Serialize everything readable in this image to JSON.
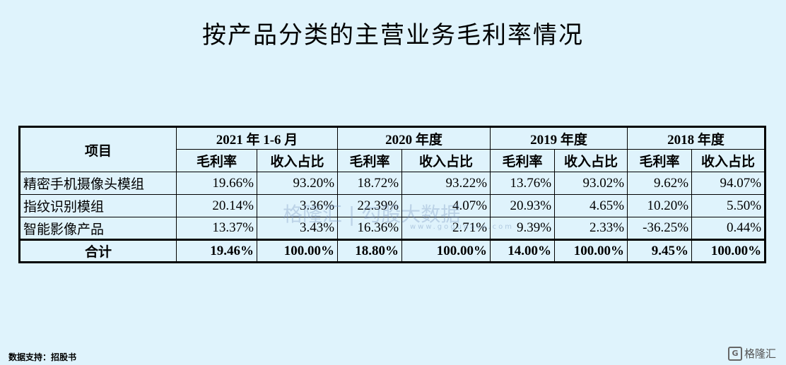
{
  "title": "按产品分类的主营业务毛利率情况",
  "table": {
    "item_header": "项目",
    "periods": [
      "2021 年 1-6 月",
      "2020 年度",
      "2019 年度",
      "2018 年度"
    ],
    "sub_headers": [
      "毛利率",
      "收入占比"
    ],
    "rows": [
      {
        "name": "精密手机摄像头模组",
        "values": [
          "19.66%",
          "93.20%",
          "18.72%",
          "93.22%",
          "13.76%",
          "93.02%",
          "9.62%",
          "94.07%"
        ]
      },
      {
        "name": "指纹识别模组",
        "values": [
          "20.14%",
          "3.36%",
          "22.39%",
          "4.07%",
          "20.93%",
          "4.65%",
          "10.20%",
          "5.50%"
        ]
      },
      {
        "name": "智能影像产品",
        "values": [
          "13.37%",
          "3.43%",
          "16.36%",
          "2.71%",
          "9.39%",
          "2.33%",
          "-36.25%",
          "0.44%"
        ]
      }
    ],
    "total": {
      "name": "合计",
      "values": [
        "19.46%",
        "100.00%",
        "18.80%",
        "100.00%",
        "14.00%",
        "100.00%",
        "9.45%",
        "100.00%"
      ]
    }
  },
  "watermark": {
    "text": "格隆汇 | 勾股大数据",
    "sub": "www.gogudata.com"
  },
  "footer": "数据支持：招股书",
  "logo": {
    "mark": "G",
    "text": "格隆汇"
  }
}
